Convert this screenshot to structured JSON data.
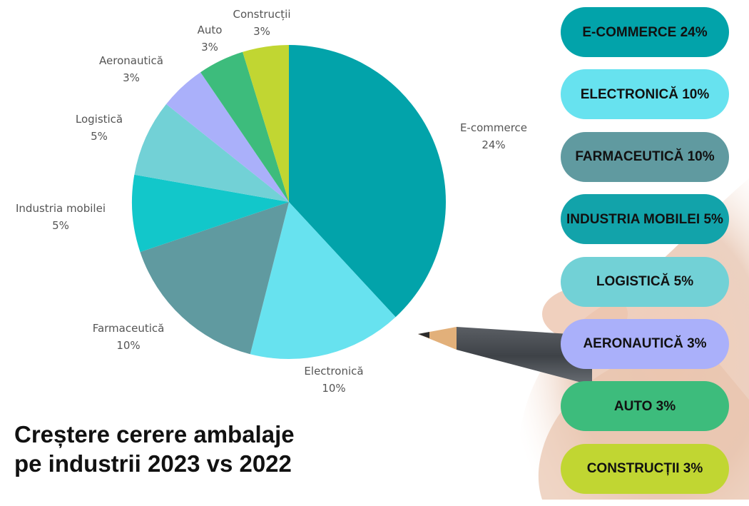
{
  "chart_data": {
    "type": "pie",
    "title": "Creștere cerere ambalaje pe industrii 2023 vs 2022",
    "slices": [
      {
        "name": "E-commerce",
        "label": "E-commerce",
        "value_label": "24%",
        "value": 24,
        "color": "#02a3aa"
      },
      {
        "name": "Electronică",
        "label": "Electronică",
        "value_label": "10%",
        "value": 10,
        "color": "#67e2ef"
      },
      {
        "name": "Farmaceutică",
        "label": "Farmaceutică",
        "value_label": "10%",
        "value": 10,
        "color": "#609aa0"
      },
      {
        "name": "Industria mobilei",
        "label": "Industria mobilei",
        "value_label": "5%",
        "value": 5,
        "color": "#12c7ca"
      },
      {
        "name": "Logistică",
        "label": "Logistică",
        "value_label": "5%",
        "value": 5,
        "color": "#72d1d6"
      },
      {
        "name": "Aeronautică",
        "label": "Aeronautică",
        "value_label": "3%",
        "value": 3,
        "color": "#aab0fa"
      },
      {
        "name": "Auto",
        "label": "Auto",
        "value_label": "3%",
        "value": 3,
        "color": "#3dbc7c"
      },
      {
        "name": "Construcții",
        "label": "Construcții",
        "value_label": "3%",
        "value": 3,
        "color": "#c1d632"
      }
    ]
  },
  "title_lines": [
    "Creștere cerere ambalaje",
    "pe industrii 2023 vs 2022"
  ],
  "pills": [
    {
      "text": "E-COMMERCE 24%",
      "color": "#02a3aa"
    },
    {
      "text": "ELECTRONICĂ 10%",
      "color": "#67e2ef"
    },
    {
      "text": "FARMACEUTICĂ 10%",
      "color": "#609aa0"
    },
    {
      "text": "INDUSTRIA MOBILEI 5%",
      "color": "#12a3aa"
    },
    {
      "text": "LOGISTICĂ 5%",
      "color": "#72d1d6"
    },
    {
      "text": "AERONAUTICĂ 3%",
      "color": "#aab0fa"
    },
    {
      "text": "AUTO 3%",
      "color": "#3dbc7c"
    },
    {
      "text": "CONSTRUCȚII 3%",
      "color": "#c1d632"
    }
  ]
}
